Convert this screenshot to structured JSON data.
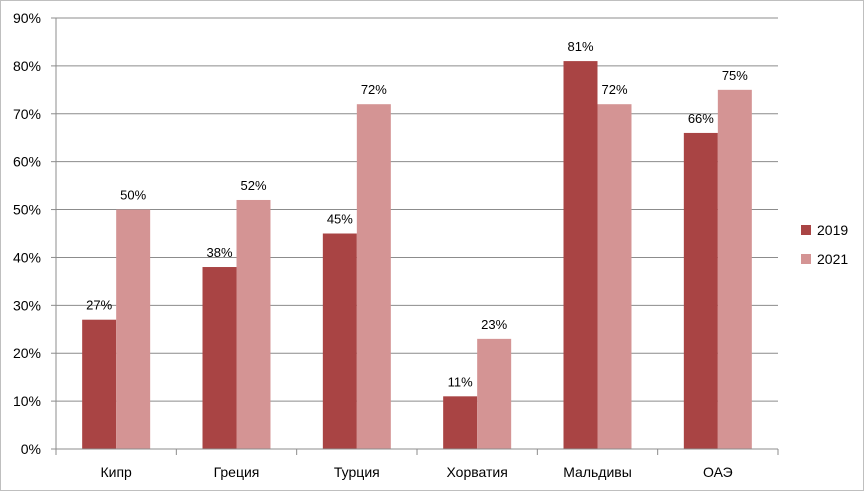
{
  "chart_data": {
    "type": "bar",
    "categories": [
      "Кипр",
      "Греция",
      "Турция",
      "Хорватия",
      "Мальдивы",
      "ОАЭ"
    ],
    "series": [
      {
        "name": "2019",
        "values": [
          27,
          38,
          45,
          11,
          81,
          66
        ],
        "color": "#a94444"
      },
      {
        "name": "2021",
        "values": [
          50,
          52,
          72,
          23,
          72,
          75
        ],
        "color": "#d49494"
      }
    ],
    "y_ticks": [
      "0%",
      "10%",
      "20%",
      "30%",
      "40%",
      "50%",
      "60%",
      "70%",
      "80%",
      "90%"
    ],
    "ylim": [
      0,
      90
    ],
    "y_step": 10,
    "value_suffix": "%",
    "grid": true,
    "legend_position": "right",
    "title": "",
    "xlabel": "",
    "ylabel": ""
  }
}
